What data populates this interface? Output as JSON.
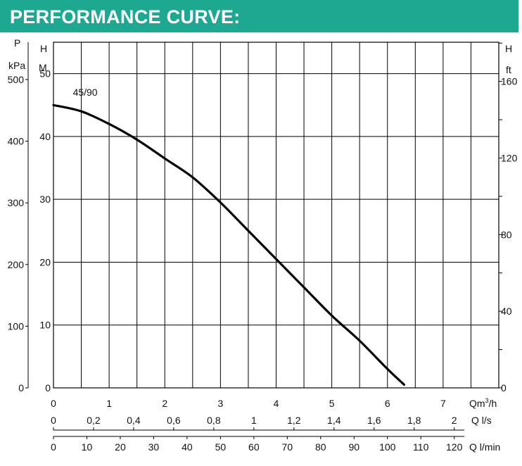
{
  "header": {
    "title": "PERFORMANCE CURVE:"
  },
  "chart_data": {
    "type": "line",
    "title": "PERFORMANCE CURVE:",
    "series": [
      {
        "name": "45/90",
        "x": [
          0,
          0.5,
          1,
          1.5,
          2,
          2.5,
          3,
          3.5,
          4,
          4.5,
          5,
          5.5,
          6,
          6.3
        ],
        "y": [
          45,
          44,
          42,
          39.5,
          36.5,
          33.5,
          29.5,
          25,
          20.5,
          16,
          11.5,
          7.5,
          3,
          0.5
        ]
      }
    ],
    "axes": {
      "p_kpa": {
        "unit_line1": "P",
        "unit_line2": "kPa",
        "ticks": [
          "500",
          "400",
          "300",
          "200",
          "100",
          "0"
        ]
      },
      "h_m": {
        "unit_line1": "H",
        "unit_line2": "M",
        "ticks": [
          "50",
          "40",
          "30",
          "20",
          "10",
          "0"
        ],
        "range": [
          0,
          50
        ]
      },
      "h_ft": {
        "unit_line1": "H",
        "unit_line2": "ft",
        "ticks": [
          "160",
          "120",
          "80",
          "40",
          "0"
        ]
      },
      "q_m3h": {
        "ticks": [
          "0",
          "1",
          "2",
          "3",
          "4",
          "5",
          "6",
          "7"
        ],
        "label_prefix": "Qm",
        "label_sup": "3",
        "label_suffix": "/h",
        "range": [
          0,
          8
        ]
      },
      "q_ls": {
        "ticks": [
          "0",
          "0,2",
          "0,4",
          "0,6",
          "0,8",
          "1",
          "1,2",
          "1,4",
          "1,6",
          "1,8",
          "2"
        ],
        "label": "Q l/s"
      },
      "q_lmin": {
        "ticks": [
          "0",
          "10",
          "20",
          "30",
          "40",
          "50",
          "60",
          "70",
          "80",
          "90",
          "100",
          "110",
          "120"
        ],
        "label": "Q l/min"
      }
    },
    "grid": true
  }
}
